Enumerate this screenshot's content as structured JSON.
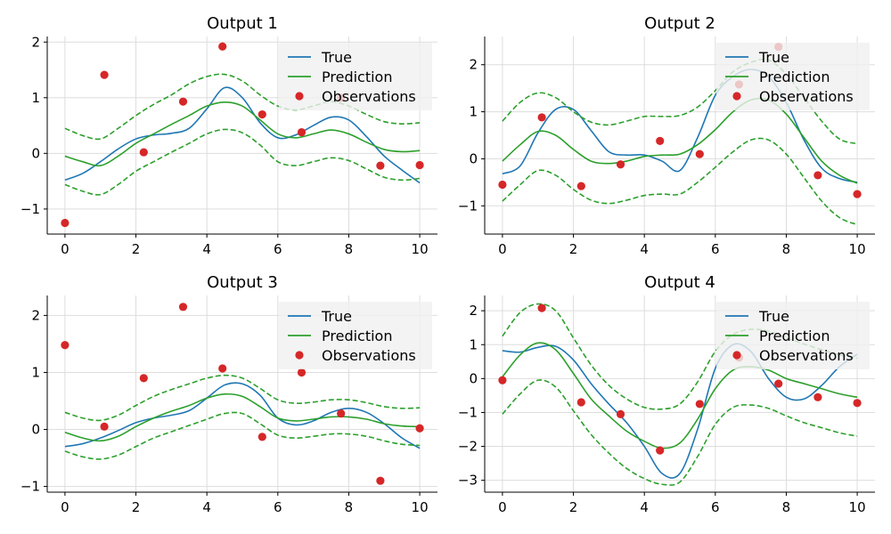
{
  "colors": {
    "true": "#1f77b4",
    "prediction": "#2ca02c",
    "observations": "#d62728",
    "grid": "#dddddd",
    "legend_bg": "#f0f0f0"
  },
  "legend": {
    "placement": "top-right",
    "entries": [
      "True",
      "Prediction",
      "Observations"
    ]
  },
  "chart_data": [
    {
      "type": "line",
      "title": "Output 1",
      "xlim": [
        -0.5,
        10.5
      ],
      "ylim": [
        -1.45,
        2.1
      ],
      "xticks": [
        0,
        2,
        4,
        6,
        8,
        10
      ],
      "yticks": [
        -1,
        0,
        1,
        2
      ],
      "xtick_labels": [
        "0",
        "2",
        "4",
        "6",
        "8",
        "10"
      ],
      "ytick_labels": [
        "−1",
        "0",
        "1",
        "2"
      ],
      "grid": true,
      "series": [
        {
          "name": "True",
          "style": "solid",
          "color": "#1f77b4",
          "x": [
            0,
            0.5,
            1,
            1.5,
            2,
            2.5,
            3,
            3.5,
            4,
            4.5,
            5,
            5.5,
            6,
            6.5,
            7,
            7.5,
            8,
            8.5,
            9,
            9.5,
            10
          ],
          "y": [
            -0.48,
            -0.36,
            -0.15,
            0.08,
            0.26,
            0.33,
            0.36,
            0.45,
            0.8,
            1.18,
            1.0,
            0.55,
            0.28,
            0.33,
            0.5,
            0.65,
            0.6,
            0.3,
            -0.05,
            -0.3,
            -0.53
          ]
        },
        {
          "name": "Prediction",
          "style": "solid",
          "color": "#2ca02c",
          "x": [
            0,
            0.5,
            1,
            1.5,
            2,
            2.5,
            3,
            3.5,
            4,
            4.5,
            5,
            5.5,
            6,
            6.5,
            7,
            7.5,
            8,
            8.5,
            9,
            9.5,
            10
          ],
          "y": [
            -0.05,
            -0.15,
            -0.22,
            -0.05,
            0.18,
            0.35,
            0.52,
            0.68,
            0.85,
            0.92,
            0.85,
            0.6,
            0.35,
            0.28,
            0.35,
            0.42,
            0.35,
            0.2,
            0.07,
            0.03,
            0.05
          ]
        },
        {
          "name": "Prediction upper",
          "style": "dashed",
          "color": "#2ca02c",
          "x": [
            0,
            0.5,
            1,
            1.5,
            2,
            2.5,
            3,
            3.5,
            4,
            4.5,
            5,
            5.5,
            6,
            6.5,
            7,
            7.5,
            8,
            8.5,
            9,
            9.5,
            10
          ],
          "y": [
            0.45,
            0.32,
            0.26,
            0.45,
            0.68,
            0.88,
            1.05,
            1.25,
            1.38,
            1.42,
            1.3,
            1.05,
            0.85,
            0.78,
            0.85,
            0.93,
            0.85,
            0.7,
            0.57,
            0.53,
            0.55
          ]
        },
        {
          "name": "Prediction lower",
          "style": "dashed",
          "color": "#2ca02c",
          "x": [
            0,
            0.5,
            1,
            1.5,
            2,
            2.5,
            3,
            3.5,
            4,
            4.5,
            5,
            5.5,
            6,
            6.5,
            7,
            7.5,
            8,
            8.5,
            9,
            9.5,
            10
          ],
          "y": [
            -0.56,
            -0.68,
            -0.74,
            -0.56,
            -0.32,
            -0.15,
            0.02,
            0.18,
            0.35,
            0.43,
            0.37,
            0.15,
            -0.15,
            -0.22,
            -0.15,
            -0.08,
            -0.13,
            -0.28,
            -0.43,
            -0.48,
            -0.45
          ]
        },
        {
          "name": "Observations",
          "style": "points",
          "color": "#d62728",
          "x": [
            0,
            1.11,
            2.22,
            3.33,
            4.44,
            5.56,
            6.67,
            7.78,
            8.89,
            10
          ],
          "y": [
            -1.25,
            1.41,
            0.02,
            0.93,
            1.92,
            0.7,
            0.38,
            1.0,
            -0.22,
            -0.21
          ]
        }
      ]
    },
    {
      "type": "line",
      "title": "Output 2",
      "xlim": [
        -0.5,
        10.5
      ],
      "ylim": [
        -1.6,
        2.6
      ],
      "xticks": [
        0,
        2,
        4,
        6,
        8,
        10
      ],
      "yticks": [
        -1,
        0,
        1,
        2
      ],
      "xtick_labels": [
        "0",
        "2",
        "4",
        "6",
        "8",
        "10"
      ],
      "ytick_labels": [
        "−1",
        "0",
        "1",
        "2"
      ],
      "grid": true,
      "series": [
        {
          "name": "True",
          "style": "solid",
          "color": "#1f77b4",
          "x": [
            0,
            0.5,
            1,
            1.5,
            2,
            2.5,
            3,
            3.5,
            4,
            4.5,
            5,
            5.5,
            6,
            6.5,
            7,
            7.5,
            8,
            8.5,
            9,
            9.5,
            10
          ],
          "y": [
            -0.32,
            -0.15,
            0.55,
            1.05,
            1.05,
            0.6,
            0.15,
            0.08,
            0.08,
            -0.05,
            -0.25,
            0.45,
            1.35,
            1.75,
            1.9,
            1.75,
            1.2,
            0.4,
            -0.2,
            -0.42,
            -0.5
          ]
        },
        {
          "name": "Prediction",
          "style": "solid",
          "color": "#2ca02c",
          "x": [
            0,
            0.5,
            1,
            1.5,
            2,
            2.5,
            3,
            3.5,
            4,
            4.5,
            5,
            5.5,
            6,
            6.5,
            7,
            7.5,
            8,
            8.5,
            9,
            9.5,
            10
          ],
          "y": [
            -0.05,
            0.3,
            0.58,
            0.5,
            0.2,
            -0.05,
            -0.1,
            -0.05,
            0.05,
            0.08,
            0.1,
            0.3,
            0.62,
            1.0,
            1.25,
            1.25,
            0.95,
            0.45,
            -0.05,
            -0.35,
            -0.52
          ]
        },
        {
          "name": "Prediction upper",
          "style": "dashed",
          "color": "#2ca02c",
          "x": [
            0,
            0.5,
            1,
            1.5,
            2,
            2.5,
            3,
            3.5,
            4,
            4.5,
            5,
            5.5,
            6,
            6.5,
            7,
            7.5,
            8,
            8.5,
            9,
            9.5,
            10
          ],
          "y": [
            0.8,
            1.2,
            1.4,
            1.3,
            1.0,
            0.78,
            0.72,
            0.8,
            0.9,
            0.9,
            0.92,
            1.1,
            1.45,
            1.85,
            2.05,
            2.1,
            1.8,
            1.3,
            0.8,
            0.42,
            0.32
          ]
        },
        {
          "name": "Prediction lower",
          "style": "dashed",
          "color": "#2ca02c",
          "x": [
            0,
            0.5,
            1,
            1.5,
            2,
            2.5,
            3,
            3.5,
            4,
            4.5,
            5,
            5.5,
            6,
            6.5,
            7,
            7.5,
            8,
            8.5,
            9,
            9.5,
            10
          ],
          "y": [
            -0.9,
            -0.55,
            -0.25,
            -0.35,
            -0.65,
            -0.88,
            -0.95,
            -0.88,
            -0.78,
            -0.75,
            -0.75,
            -0.5,
            -0.18,
            0.15,
            0.4,
            0.4,
            0.1,
            -0.4,
            -0.9,
            -1.25,
            -1.4
          ]
        },
        {
          "name": "Observations",
          "style": "points",
          "color": "#d62728",
          "x": [
            0,
            1.11,
            2.22,
            3.33,
            4.44,
            5.56,
            6.67,
            7.78,
            8.89,
            10
          ],
          "y": [
            -0.55,
            0.88,
            -0.58,
            -0.12,
            0.38,
            0.1,
            1.58,
            2.38,
            -0.35,
            -0.75
          ]
        }
      ]
    },
    {
      "type": "line",
      "title": "Output 3",
      "xlim": [
        -0.5,
        10.5
      ],
      "ylim": [
        -1.1,
        2.35
      ],
      "xticks": [
        0,
        2,
        4,
        6,
        8,
        10
      ],
      "yticks": [
        -1,
        0,
        1,
        2
      ],
      "xtick_labels": [
        "0",
        "2",
        "4",
        "6",
        "8",
        "10"
      ],
      "ytick_labels": [
        "−1",
        "0",
        "1",
        "2"
      ],
      "grid": true,
      "series": [
        {
          "name": "True",
          "style": "solid",
          "color": "#1f77b4",
          "x": [
            0,
            0.5,
            1,
            1.5,
            2,
            2.5,
            3,
            3.5,
            4,
            4.5,
            5,
            5.5,
            6,
            6.5,
            7,
            7.5,
            8,
            8.5,
            9,
            9.5,
            10
          ],
          "y": [
            -0.3,
            -0.25,
            -0.15,
            -0.02,
            0.12,
            0.2,
            0.25,
            0.33,
            0.55,
            0.78,
            0.8,
            0.6,
            0.2,
            0.08,
            0.15,
            0.3,
            0.37,
            0.3,
            0.1,
            -0.15,
            -0.33
          ]
        },
        {
          "name": "Prediction",
          "style": "solid",
          "color": "#2ca02c",
          "x": [
            0,
            0.5,
            1,
            1.5,
            2,
            2.5,
            3,
            3.5,
            4,
            4.5,
            5,
            5.5,
            6,
            6.5,
            7,
            7.5,
            8,
            8.5,
            9,
            9.5,
            10
          ],
          "y": [
            -0.05,
            -0.15,
            -0.2,
            -0.12,
            0.05,
            0.2,
            0.32,
            0.42,
            0.55,
            0.62,
            0.58,
            0.4,
            0.2,
            0.15,
            0.18,
            0.22,
            0.22,
            0.18,
            0.1,
            0.06,
            0.05
          ]
        },
        {
          "name": "Prediction upper",
          "style": "dashed",
          "color": "#2ca02c",
          "x": [
            0,
            0.5,
            1,
            1.5,
            2,
            2.5,
            3,
            3.5,
            4,
            4.5,
            5,
            5.5,
            6,
            6.5,
            7,
            7.5,
            8,
            8.5,
            9,
            9.5,
            10
          ],
          "y": [
            0.3,
            0.2,
            0.16,
            0.25,
            0.42,
            0.58,
            0.7,
            0.8,
            0.9,
            0.95,
            0.9,
            0.72,
            0.52,
            0.46,
            0.48,
            0.52,
            0.52,
            0.47,
            0.4,
            0.37,
            0.38
          ]
        },
        {
          "name": "Prediction lower",
          "style": "dashed",
          "color": "#2ca02c",
          "x": [
            0,
            0.5,
            1,
            1.5,
            2,
            2.5,
            3,
            3.5,
            4,
            4.5,
            5,
            5.5,
            6,
            6.5,
            7,
            7.5,
            8,
            8.5,
            9,
            9.5,
            10
          ],
          "y": [
            -0.38,
            -0.48,
            -0.52,
            -0.45,
            -0.3,
            -0.15,
            -0.04,
            0.07,
            0.18,
            0.28,
            0.28,
            0.1,
            -0.1,
            -0.15,
            -0.12,
            -0.08,
            -0.08,
            -0.12,
            -0.2,
            -0.26,
            -0.28
          ]
        },
        {
          "name": "Observations",
          "style": "points",
          "color": "#d62728",
          "x": [
            0,
            1.11,
            2.22,
            3.33,
            4.44,
            5.56,
            6.67,
            7.78,
            8.89,
            10
          ],
          "y": [
            1.48,
            0.05,
            0.9,
            2.15,
            1.07,
            -0.13,
            1.0,
            0.28,
            -0.9,
            0.02
          ]
        }
      ]
    },
    {
      "type": "line",
      "title": "Output 4",
      "xlim": [
        -0.5,
        10.5
      ],
      "ylim": [
        -3.35,
        2.45
      ],
      "xticks": [
        0,
        2,
        4,
        6,
        8,
        10
      ],
      "yticks": [
        -3,
        -2,
        -1,
        0,
        1,
        2
      ],
      "xtick_labels": [
        "0",
        "2",
        "4",
        "6",
        "8",
        "10"
      ],
      "ytick_labels": [
        "−3",
        "−2",
        "−1",
        "0",
        "1",
        "2"
      ],
      "grid": true,
      "series": [
        {
          "name": "True",
          "style": "solid",
          "color": "#1f77b4",
          "x": [
            0,
            0.5,
            1,
            1.5,
            2,
            2.5,
            3,
            3.5,
            4,
            4.5,
            5,
            5.5,
            6,
            6.5,
            7,
            7.5,
            8,
            8.5,
            9,
            9.5,
            10
          ],
          "y": [
            0.82,
            0.78,
            0.92,
            0.95,
            0.55,
            -0.15,
            -0.75,
            -1.3,
            -2.0,
            -2.8,
            -2.8,
            -1.5,
            0.3,
            1.0,
            0.8,
            0.0,
            -0.55,
            -0.6,
            -0.2,
            0.35,
            0.72
          ]
        },
        {
          "name": "Prediction",
          "style": "solid",
          "color": "#2ca02c",
          "x": [
            0,
            0.5,
            1,
            1.5,
            2,
            2.5,
            3,
            3.5,
            4,
            4.5,
            5,
            5.5,
            6,
            6.5,
            7,
            7.5,
            8,
            8.5,
            9,
            9.5,
            10
          ],
          "y": [
            0.05,
            0.7,
            1.05,
            0.85,
            0.15,
            -0.6,
            -1.1,
            -1.55,
            -1.85,
            -2.05,
            -1.9,
            -1.2,
            -0.3,
            0.25,
            0.35,
            0.25,
            0.0,
            -0.15,
            -0.3,
            -0.45,
            -0.55
          ]
        },
        {
          "name": "Prediction upper",
          "style": "dashed",
          "color": "#2ca02c",
          "x": [
            0,
            0.5,
            1,
            1.5,
            2,
            2.5,
            3,
            3.5,
            4,
            4.5,
            5,
            5.5,
            6,
            6.5,
            7,
            7.5,
            8,
            8.5,
            9,
            9.5,
            10
          ],
          "y": [
            1.25,
            1.95,
            2.2,
            2.0,
            1.2,
            0.4,
            -0.2,
            -0.6,
            -0.85,
            -0.9,
            -0.75,
            -0.1,
            0.8,
            1.3,
            1.45,
            1.4,
            1.2,
            1.02,
            0.85,
            0.7,
            0.6
          ]
        },
        {
          "name": "Prediction lower",
          "style": "dashed",
          "color": "#2ca02c",
          "x": [
            0,
            0.5,
            1,
            1.5,
            2,
            2.5,
            3,
            3.5,
            4,
            4.5,
            5,
            5.5,
            6,
            6.5,
            7,
            7.5,
            8,
            8.5,
            9,
            9.5,
            10
          ],
          "y": [
            -1.05,
            -0.45,
            -0.05,
            -0.25,
            -0.95,
            -1.65,
            -2.2,
            -2.65,
            -2.95,
            -3.12,
            -3.05,
            -2.3,
            -1.35,
            -0.85,
            -0.78,
            -0.88,
            -1.1,
            -1.3,
            -1.45,
            -1.6,
            -1.7
          ]
        },
        {
          "name": "Observations",
          "style": "points",
          "color": "#d62728",
          "x": [
            0,
            1.11,
            2.22,
            3.33,
            4.44,
            5.56,
            6.67,
            7.78,
            8.89,
            10
          ],
          "y": [
            -0.05,
            2.08,
            -0.7,
            -1.05,
            -2.12,
            -0.75,
            0.62,
            -0.15,
            -0.55,
            -0.72
          ]
        }
      ]
    }
  ]
}
